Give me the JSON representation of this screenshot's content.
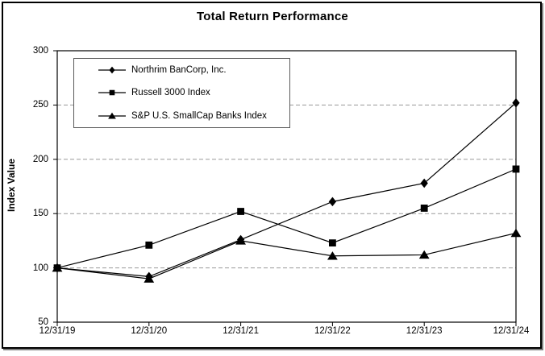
{
  "chart_data": {
    "type": "line",
    "title": "Total Return Performance",
    "xlabel": "",
    "ylabel": "Index Value",
    "x": [
      "12/31/19",
      "12/31/20",
      "12/31/21",
      "12/31/22",
      "12/31/23",
      "12/31/24"
    ],
    "ylim": [
      50,
      300
    ],
    "yticks": [
      50,
      100,
      150,
      200,
      250,
      300
    ],
    "grid": "horizontal-dashed",
    "legend_position": "top-left-inside-plot",
    "series": [
      {
        "name": "Northrim BanCorp, Inc.",
        "marker": "diamond",
        "color": "#000000",
        "values": [
          100,
          92,
          126,
          161,
          178,
          252
        ]
      },
      {
        "name": "Russell 3000 Index",
        "marker": "square",
        "color": "#000000",
        "values": [
          100,
          121,
          152,
          123,
          155,
          191
        ]
      },
      {
        "name": "S&P U.S. SmallCap Banks Index",
        "marker": "triangle",
        "color": "#000000",
        "values": [
          100,
          90,
          125,
          111,
          112,
          132
        ]
      }
    ]
  },
  "colors": {
    "line": "#000000",
    "grid_line": "#999999",
    "axis": "#000000",
    "legend_border": "#595959",
    "frame_border": "#000000",
    "frame_shadow": "#7f7f7f",
    "background": "#ffffff"
  }
}
